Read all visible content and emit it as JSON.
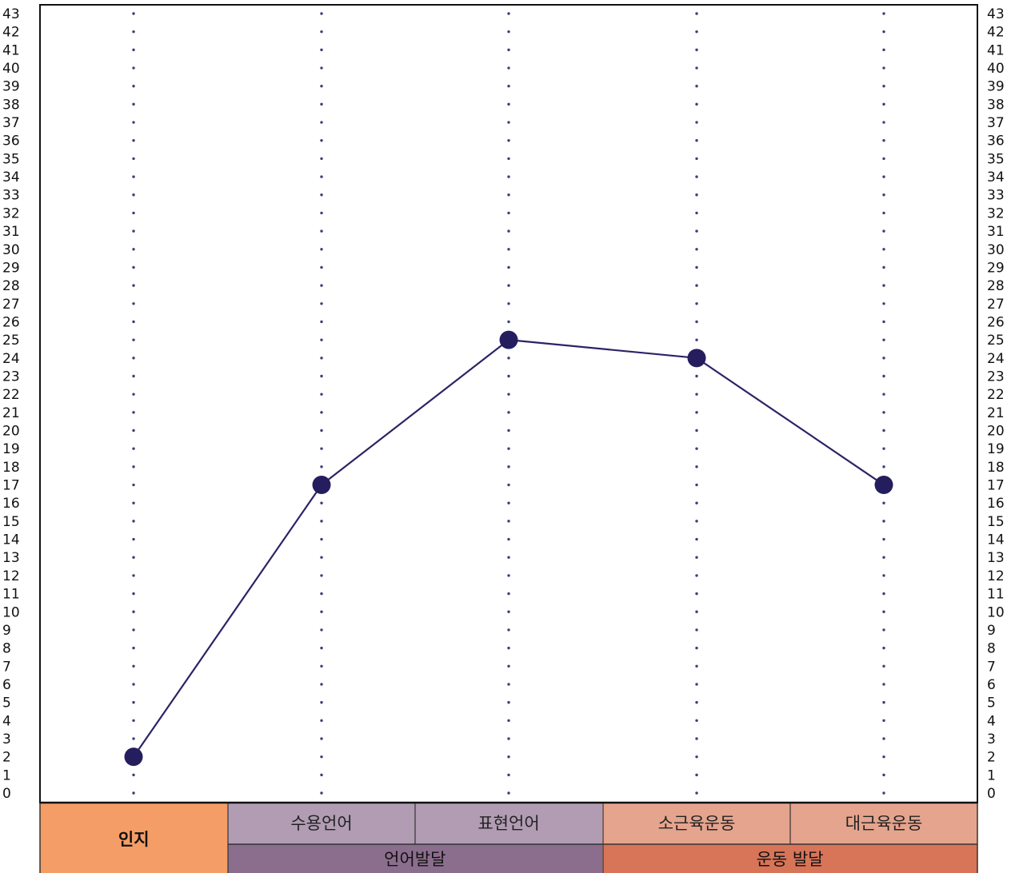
{
  "chart_data": {
    "type": "line",
    "title": "",
    "xlabel": "",
    "ylabel": "",
    "ylim": [
      0,
      43
    ],
    "y_ticks": [
      "0",
      "1",
      "2",
      "3",
      "4",
      "5",
      "6",
      "7",
      "8",
      "9",
      "10",
      "11",
      "12",
      "13",
      "14",
      "15",
      "16",
      "17",
      "18",
      "19",
      "20",
      "21",
      "22",
      "23",
      "24",
      "25",
      "26",
      "27",
      "28",
      "29",
      "30",
      "31",
      "32",
      "33",
      "34",
      "35",
      "36",
      "37",
      "38",
      "39",
      "40",
      "41",
      "42",
      "43"
    ],
    "y_ticks_right": true,
    "grid": "dotted vertical lines at each category",
    "categories": [
      "인지",
      "수용언어",
      "표현언어",
      "소근육운동",
      "대근육운동"
    ],
    "series": [
      {
        "values": [
          2,
          17,
          25,
          24,
          17
        ]
      }
    ],
    "groups": [
      {
        "label": "언어발달",
        "members": [
          "수용언어",
          "표현언어"
        ]
      },
      {
        "label": "운동 발달",
        "members": [
          "소근육운동",
          "대근육운동"
        ]
      }
    ],
    "colors": {
      "line": "#2a2466",
      "dot": "#241e5e",
      "grid_dots": "#3c3c7a",
      "cognition_cell": "#f59d66",
      "language_sub": "#b19cb4",
      "language_group": "#8b6e8d",
      "motor_sub": "#e5a48e",
      "motor_group": "#d87458",
      "frame": "#111111"
    }
  }
}
